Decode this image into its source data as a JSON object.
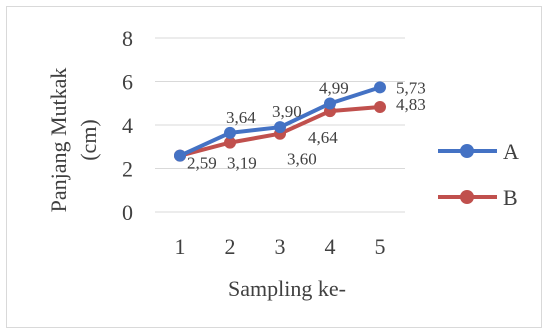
{
  "chart_data": {
    "type": "line",
    "categories": [
      "1",
      "2",
      "3",
      "4",
      "5"
    ],
    "series": [
      {
        "name": "A",
        "values": [
          2.59,
          3.64,
          3.9,
          4.99,
          5.73
        ],
        "labels": [
          "",
          "3,64",
          "3,90",
          "4,99",
          "5,73"
        ],
        "color": "#4472c4"
      },
      {
        "name": "B",
        "values": [
          2.59,
          3.19,
          3.6,
          4.64,
          4.83
        ],
        "labels": [
          "2,59",
          "3,19",
          "3,60",
          "4,64",
          "4,83"
        ],
        "color": "#c0504d"
      }
    ],
    "xlabel": "Sampling ke-",
    "ylabel_lines": [
      "Panjang Mutkak",
      "(cm)"
    ],
    "ylim": [
      0,
      8
    ],
    "yticks": [
      0,
      2,
      4,
      6,
      8
    ],
    "grid": true,
    "legend_position": "right"
  }
}
